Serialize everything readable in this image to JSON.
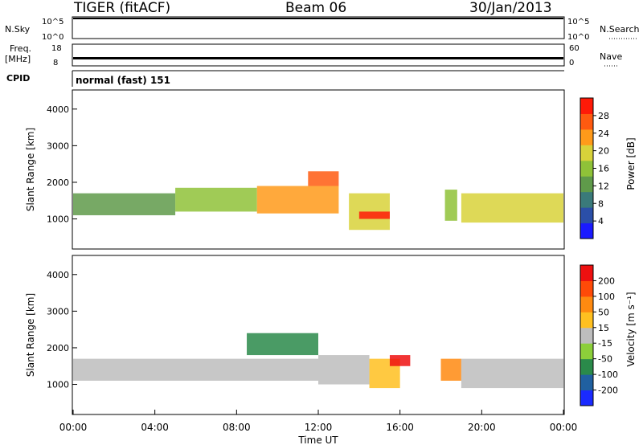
{
  "header": {
    "radar": "TIGER (fitACF)",
    "beam": "Beam 06",
    "date": "30/Jan/2013"
  },
  "panels": {
    "nsky": {
      "label": "N.Sky",
      "ticks": [
        "10^5",
        "10^0"
      ],
      "right_label": "N.Search",
      "right_ticks": [
        "10^5",
        "10^0"
      ]
    },
    "freq": {
      "label_top": "Freq.",
      "label_bottom": "[MHz]",
      "ticks": [
        "18",
        "8"
      ],
      "right_label": "Nave",
      "right_ticks": [
        "60",
        "0"
      ]
    },
    "cpid": {
      "label": "CPID",
      "mode": "normal (fast) 151"
    }
  },
  "chart_data": [
    {
      "type": "heatmap",
      "name": "power",
      "ylabel": "Slant Range [km]",
      "ylim": [
        200,
        4500
      ],
      "yticks": [
        "4000",
        "3000",
        "2000",
        "1000"
      ],
      "colorbar": {
        "label": "Power [dB]",
        "ticks": [
          "28",
          "24",
          "20",
          "16",
          "12",
          "8",
          "4"
        ],
        "colors": [
          "#1a1aff",
          "#2b4fa8",
          "#3a7a7a",
          "#5f9a4a",
          "#8fc238",
          "#d8d23a",
          "#ff9a1a",
          "#ff5a10",
          "#ff1a08"
        ]
      },
      "bands": [
        {
          "t0": 0.0,
          "t1": 5.0,
          "r0": 1100,
          "r1": 1700,
          "level": 3
        },
        {
          "t0": 5.0,
          "t1": 9.0,
          "r0": 1200,
          "r1": 1850,
          "level": 4
        },
        {
          "t0": 9.0,
          "t1": 13.0,
          "r0": 1150,
          "r1": 1900,
          "level": 6
        },
        {
          "t0": 11.5,
          "t1": 13.0,
          "r0": 1900,
          "r1": 2300,
          "level": 7
        },
        {
          "t0": 13.5,
          "t1": 15.5,
          "r0": 700,
          "r1": 1700,
          "level": 5
        },
        {
          "t0": 14.0,
          "t1": 15.5,
          "r0": 1000,
          "r1": 1200,
          "level": 8
        },
        {
          "t0": 18.2,
          "t1": 18.8,
          "r0": 950,
          "r1": 1800,
          "level": 4
        },
        {
          "t0": 19.0,
          "t1": 24.0,
          "r0": 900,
          "r1": 1700,
          "level": 5
        }
      ]
    },
    {
      "type": "heatmap",
      "name": "velocity",
      "ylabel": "Slant Range [km]",
      "ylim": [
        200,
        4500
      ],
      "yticks": [
        "4000",
        "3000",
        "2000",
        "1000"
      ],
      "colorbar": {
        "label": "Velocity [m s⁻¹]",
        "ticks": [
          "200",
          "100",
          "50",
          "15",
          "-15",
          "-50",
          "-100",
          "-200"
        ],
        "colors": [
          "#1a2aff",
          "#2060a0",
          "#2a8a4a",
          "#8ccf3a",
          "#bdbdbd",
          "#ffc020",
          "#ff8a10",
          "#ff4a08",
          "#ee1010"
        ]
      },
      "bands": [
        {
          "t0": 0.0,
          "t1": 12.0,
          "r0": 1100,
          "r1": 1700,
          "level": 4
        },
        {
          "t0": 8.5,
          "t1": 12.0,
          "r0": 1800,
          "r1": 2400,
          "level": 2
        },
        {
          "t0": 12.0,
          "t1": 14.5,
          "r0": 1000,
          "r1": 1800,
          "level": 4
        },
        {
          "t0": 14.5,
          "t1": 16.0,
          "r0": 900,
          "r1": 1700,
          "level": 5
        },
        {
          "t0": 15.5,
          "t1": 16.5,
          "r0": 1500,
          "r1": 1800,
          "level": 8
        },
        {
          "t0": 18.0,
          "t1": 19.0,
          "r0": 1100,
          "r1": 1700,
          "level": 6
        },
        {
          "t0": 19.0,
          "t1": 24.0,
          "r0": 900,
          "r1": 1700,
          "level": 4
        }
      ]
    }
  ],
  "xaxis": {
    "label": "Time UT",
    "ticks": [
      "00:00",
      "04:00",
      "08:00",
      "12:00",
      "16:00",
      "20:00",
      "00:00"
    ],
    "range_hours": [
      0,
      24
    ]
  }
}
